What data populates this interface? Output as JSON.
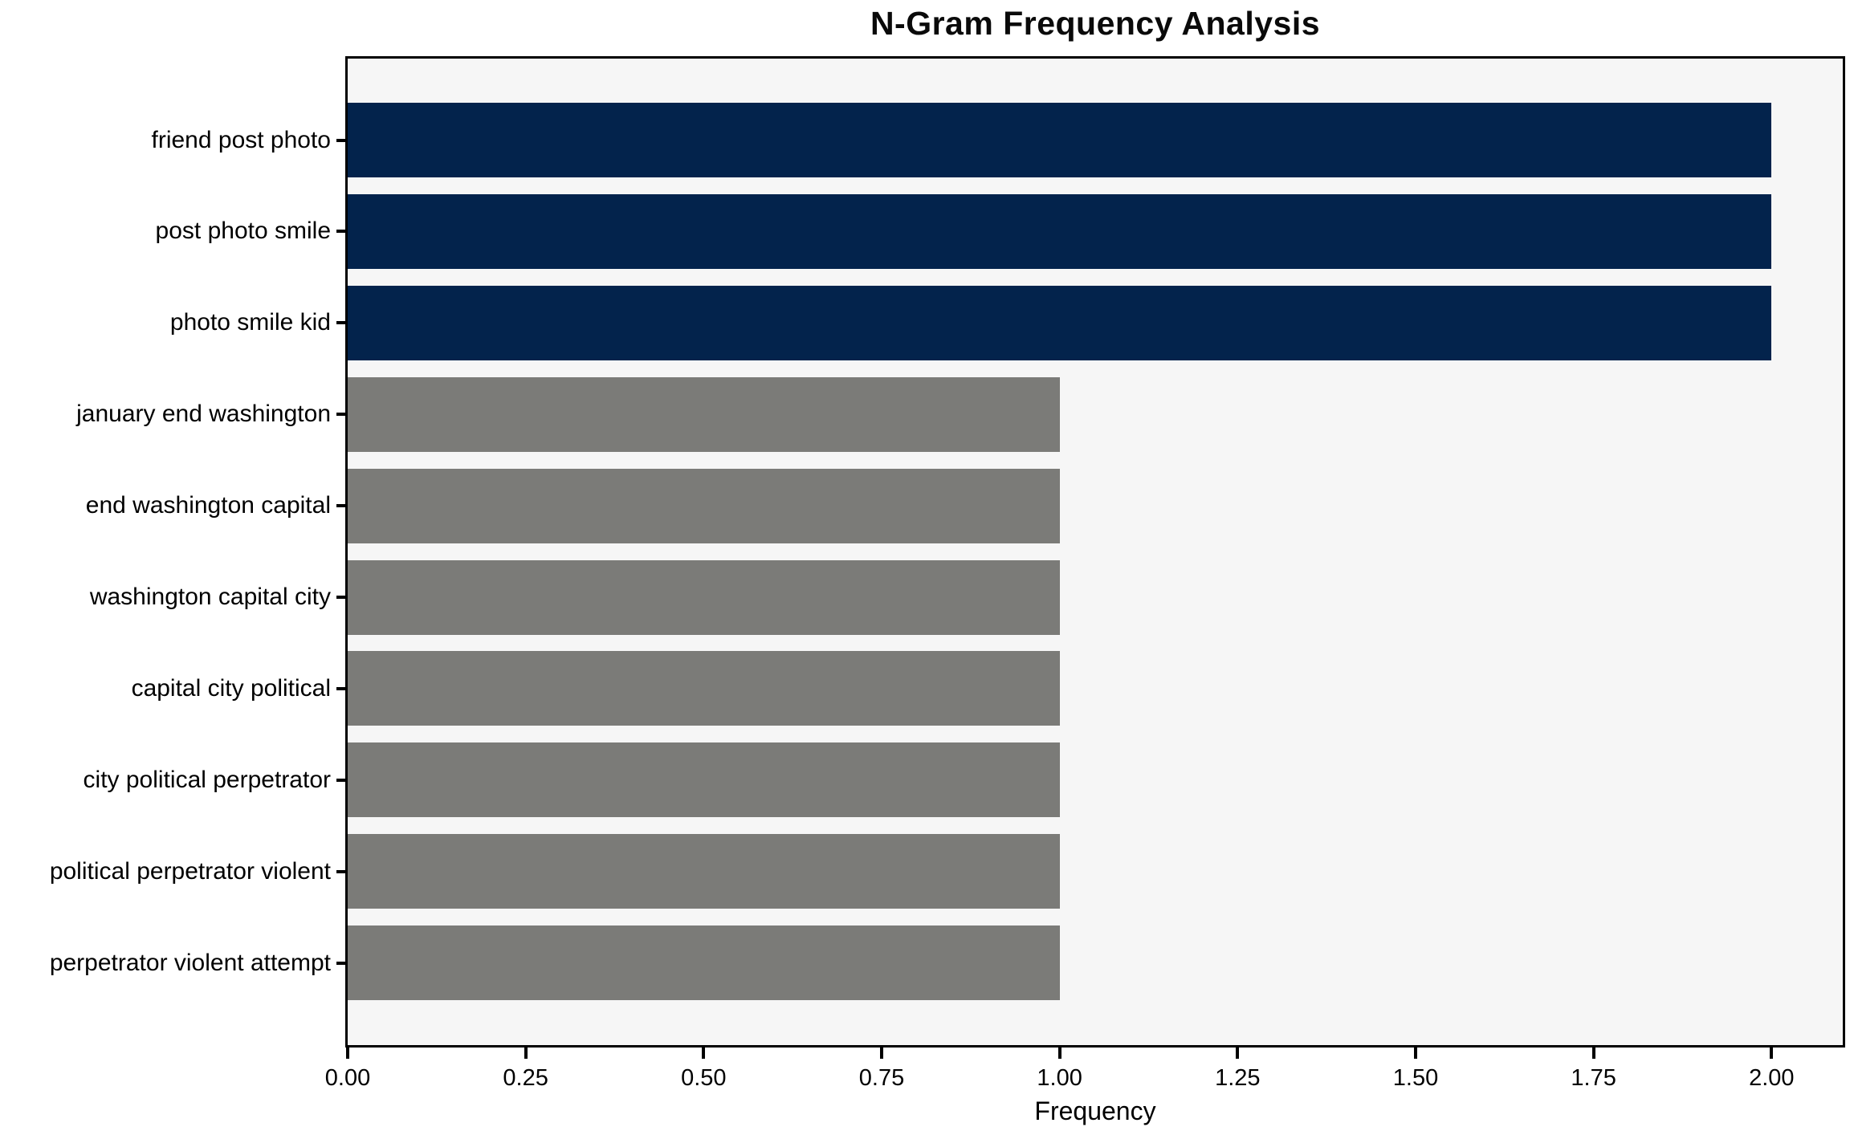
{
  "chart_data": {
    "type": "bar",
    "orientation": "horizontal",
    "title": "N-Gram Frequency Analysis",
    "xlabel": "Frequency",
    "ylabel": "",
    "categories": [
      "friend post photo",
      "post photo smile",
      "photo smile kid",
      "january end washington",
      "end washington capital",
      "washington capital city",
      "capital city political",
      "city political perpetrator",
      "political perpetrator violent",
      "perpetrator violent attempt"
    ],
    "values": [
      2,
      2,
      2,
      1,
      1,
      1,
      1,
      1,
      1,
      1
    ],
    "bar_colors": [
      "#03234c",
      "#03234c",
      "#03234c",
      "#7b7b78",
      "#7b7b78",
      "#7b7b78",
      "#7b7b78",
      "#7b7b78",
      "#7b7b78",
      "#7b7b78"
    ],
    "xlim": [
      0,
      2.1
    ],
    "xtick_labels": [
      "0.00",
      "0.25",
      "0.50",
      "0.75",
      "1.00",
      "1.25",
      "1.50",
      "1.75",
      "2.00"
    ],
    "xtick_values": [
      0,
      0.25,
      0.5,
      0.75,
      1.0,
      1.25,
      1.5,
      1.75,
      2.0
    ],
    "colors": {
      "highlight_bar": "#03234c",
      "default_bar": "#7b7b78",
      "plot_background": "#f6f6f6",
      "axis": "#000000",
      "text": "#000000"
    },
    "grid": false,
    "legend": null
  }
}
